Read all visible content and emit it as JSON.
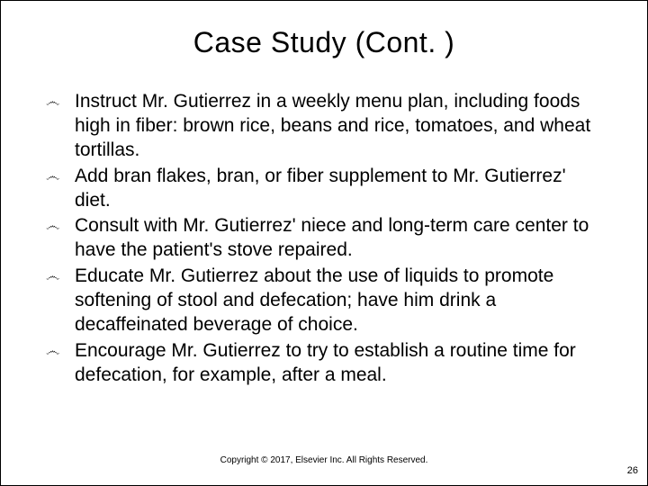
{
  "title": "Case Study (Cont. )",
  "bullets": [
    "Instruct Mr. Gutierrez in a weekly menu plan, including foods high in fiber: brown rice, beans and rice, tomatoes, and wheat tortillas.",
    "Add bran flakes, bran, or fiber supplement to Mr. Gutierrez' diet.",
    "Consult with Mr. Gutierrez' niece and long-term care center to have the patient's stove repaired.",
    "Educate Mr. Gutierrez about the use of liquids to promote softening of stool and defecation; have him drink a decaffeinated beverage of choice.",
    "Encourage Mr. Gutierrez to try to establish a routine time for defecation, for example, after a meal."
  ],
  "bullet_glyph": "෴",
  "copyright": "Copyright © 2017, Elsevier Inc. All Rights Reserved.",
  "page_number": "26",
  "style": {
    "background_color": "#ffffff",
    "text_color": "#000000",
    "title_fontsize": 32,
    "body_fontsize": 21,
    "copyright_fontsize": 10,
    "pagenum_fontsize": 11,
    "font_family": "Arial",
    "slide_width": 720,
    "slide_height": 540,
    "line_height": 1.28,
    "border_color": "#000000"
  }
}
